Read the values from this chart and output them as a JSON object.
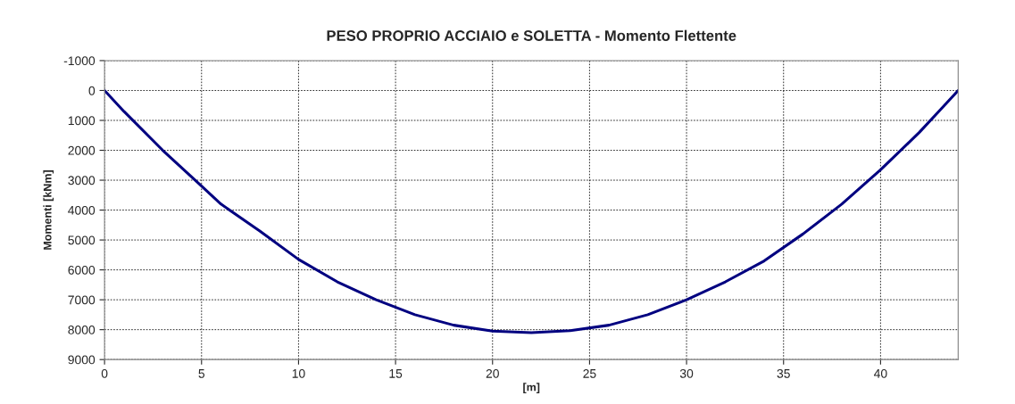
{
  "chart_data": {
    "type": "line",
    "title": "PESO PROPRIO ACCIAIO e SOLETTA - Momento Flettente",
    "xlabel": "[m]",
    "ylabel": "Momenti [kNm]",
    "x": [
      0,
      1,
      3,
      5,
      6,
      8,
      10,
      12,
      14,
      16,
      18,
      20,
      22,
      24,
      26,
      28,
      30,
      32,
      34,
      36,
      38,
      40,
      42,
      43,
      44
    ],
    "series": [
      {
        "color": "#000080",
        "values": [
          0,
          700,
          2000,
          3200,
          3800,
          4700,
          5650,
          6400,
          7000,
          7500,
          7850,
          8050,
          8100,
          8030,
          7850,
          7500,
          7000,
          6400,
          5700,
          4800,
          3800,
          2650,
          1400,
          700,
          0
        ]
      }
    ],
    "xlim": [
      0,
      44
    ],
    "xticks": [
      0,
      5,
      10,
      15,
      20,
      25,
      30,
      35,
      40
    ],
    "ylim": [
      9000,
      -1000
    ],
    "yticks": [
      -1000,
      0,
      1000,
      2000,
      3000,
      4000,
      5000,
      6000,
      7000,
      8000,
      9000
    ],
    "grid": true,
    "line_style": "solid",
    "marker": "none"
  }
}
